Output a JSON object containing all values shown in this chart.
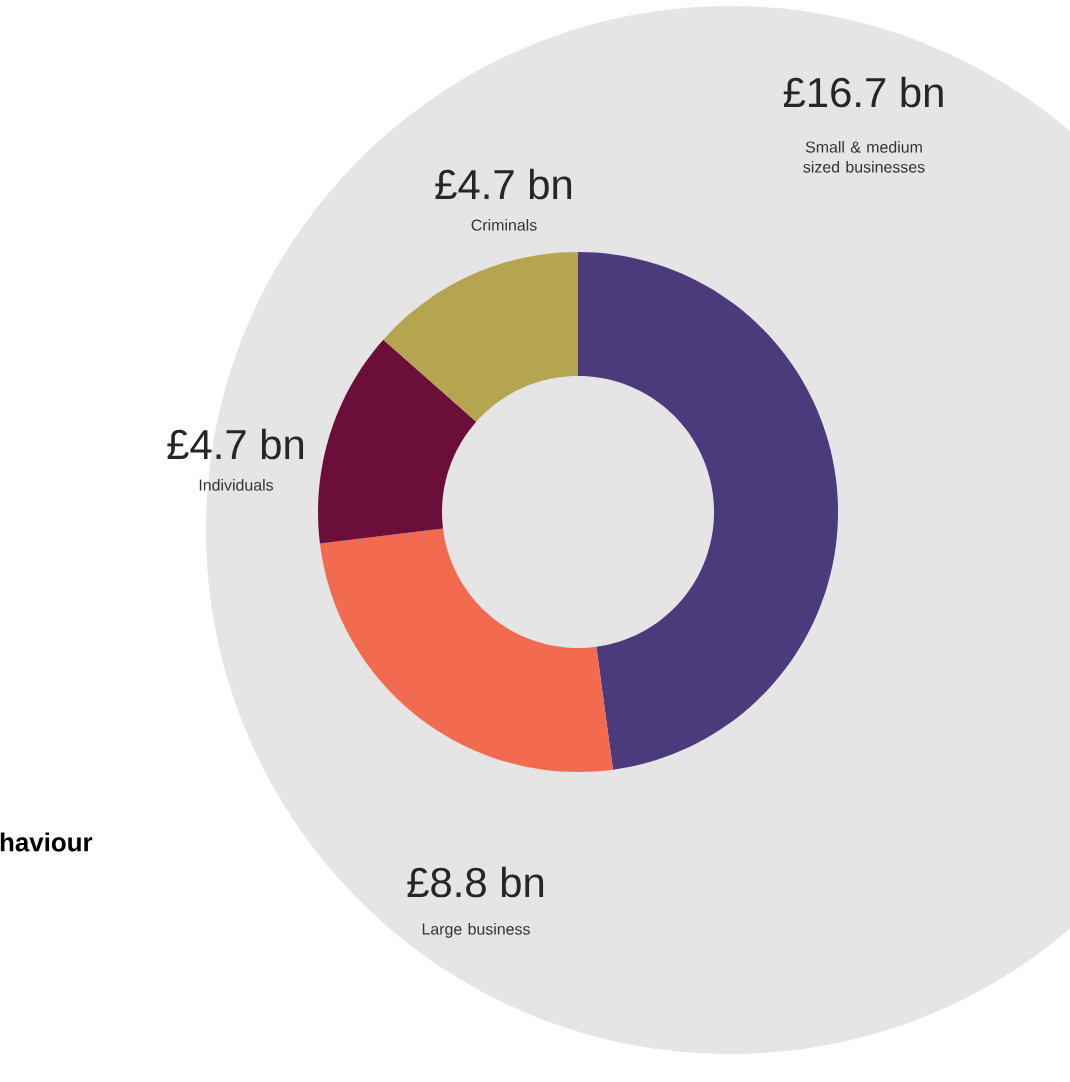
{
  "chart_data": {
    "type": "donut",
    "categories": [
      "Small & medium sized businesses",
      "Large business",
      "Individuals",
      "Criminals"
    ],
    "values": [
      16.7,
      8.8,
      4.7,
      4.7
    ],
    "value_labels": [
      "£16.7 bn",
      "£8.8 bn",
      "£4.7 bn",
      "£4.7 bn"
    ],
    "colors": [
      "#4b3a7c",
      "#f26b50",
      "#6b0f3a",
      "#b5a550"
    ],
    "annotations": [
      "haviour"
    ]
  }
}
